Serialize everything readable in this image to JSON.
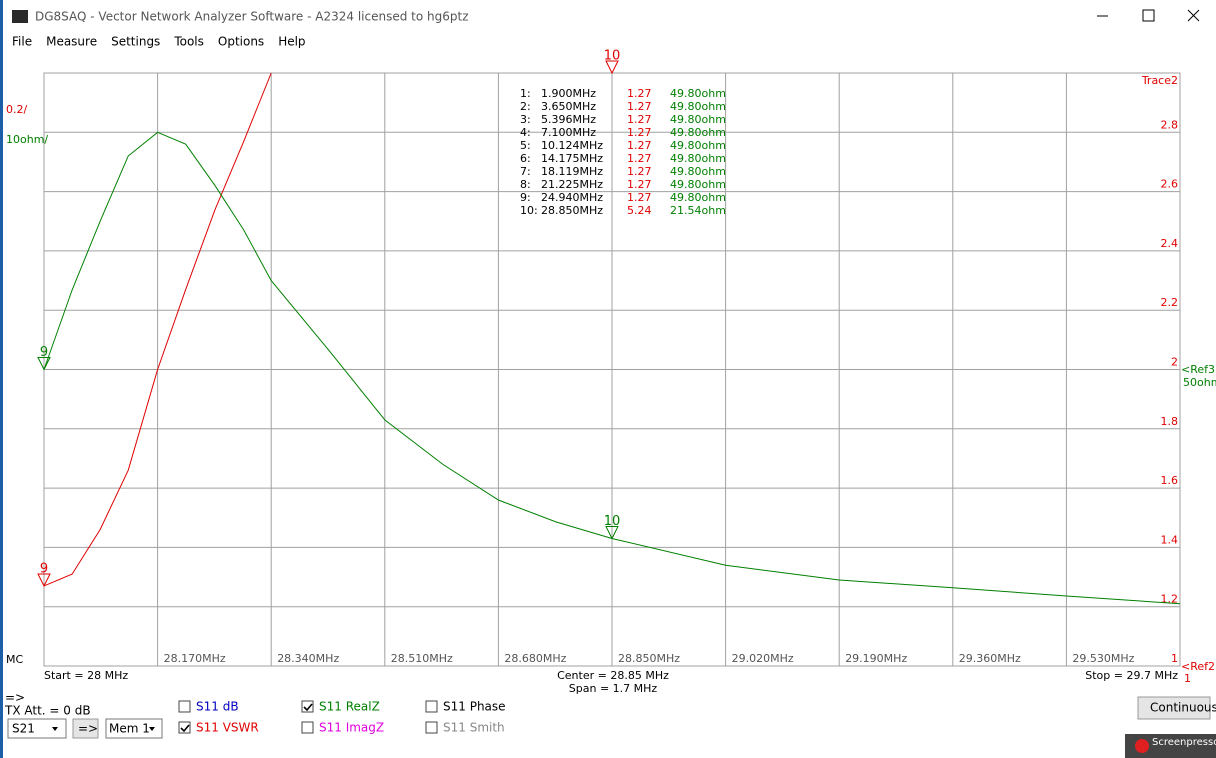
{
  "window": {
    "title": "DG8SAQ  -  Vector Network Analyzer Software  -  A2324 licensed to hg6ptz"
  },
  "menu": [
    "File",
    "Measure",
    "Settings",
    "Tools",
    "Options",
    "Help"
  ],
  "chart_data": {
    "type": "line",
    "left_labels": [
      "0.2/",
      "10ohm/"
    ],
    "trace_label": "Trace2",
    "ref3": [
      "<Ref3",
      "50ohm"
    ],
    "ref2": [
      "<Ref2",
      "1"
    ],
    "mc_label": "MC",
    "start": "Start = 28 MHz",
    "center": "Center = 28.85 MHz",
    "span": "Span = 1.7 MHz",
    "stop": "Stop = 29.7 MHz",
    "x": [
      28,
      28.042,
      28.084,
      28.126,
      28.17,
      28.212,
      28.256,
      28.299,
      28.34,
      28.428,
      28.51,
      28.597,
      28.68,
      28.766,
      28.85,
      29.02,
      29.19,
      29.36,
      29.53,
      29.7
    ],
    "xlim": [
      28,
      29.7
    ],
    "xticks": [
      {
        "value": 28.17,
        "label": "28.170MHz"
      },
      {
        "value": 28.34,
        "label": "28.340MHz"
      },
      {
        "value": 28.51,
        "label": "28.510MHz"
      },
      {
        "value": 28.68,
        "label": "28.680MHz"
      },
      {
        "value": 28.85,
        "label": "28.850MHz"
      },
      {
        "value": 29.02,
        "label": "29.020MHz"
      },
      {
        "value": 29.19,
        "label": "29.190MHz"
      },
      {
        "value": 29.36,
        "label": "29.360MHz"
      },
      {
        "value": 29.53,
        "label": "29.530MHz"
      }
    ],
    "ylim": [
      1,
      3
    ],
    "yticks": [
      1,
      1.2,
      1.4,
      1.6,
      1.8,
      2,
      2.2,
      2.4,
      2.6,
      2.8
    ],
    "y2lim": [
      0,
      100
    ],
    "grid": true,
    "series": [
      {
        "name": "S11 VSWR",
        "color": "#e00000",
        "values": [
          1.27,
          1.31,
          1.46,
          1.66,
          2.0,
          2.27,
          2.54,
          2.77,
          3.0,
          null,
          null,
          null,
          null,
          null,
          null,
          null,
          null,
          null,
          null,
          null
        ]
      },
      {
        "name": "S11 RealZ",
        "color": "#008000",
        "axis": "y2",
        "values": [
          50,
          63.4,
          75,
          86,
          90,
          88,
          81,
          73.5,
          65,
          53,
          41.5,
          34,
          28,
          24.3,
          21.5,
          17,
          14.5,
          13.2,
          11.8,
          10.5
        ]
      }
    ],
    "marker_labels": [
      "9",
      "10"
    ],
    "markers": [
      [
        "1:",
        "1.900MHz",
        "1.27",
        "49.80ohm"
      ],
      [
        "2:",
        "3.650MHz",
        "1.27",
        "49.80ohm"
      ],
      [
        "3:",
        "5.396MHz",
        "1.27",
        "49.80ohm"
      ],
      [
        "4:",
        "7.100MHz",
        "1.27",
        "49.80ohm"
      ],
      [
        "5:",
        "10.124MHz",
        "1.27",
        "49.80ohm"
      ],
      [
        "6:",
        "14.175MHz",
        "1.27",
        "49.80ohm"
      ],
      [
        "7:",
        "18.119MHz",
        "1.27",
        "49.80ohm"
      ],
      [
        "8:",
        "21.225MHz",
        "1.27",
        "49.80ohm"
      ],
      [
        "9:",
        "24.940MHz",
        "1.27",
        "49.80ohm"
      ],
      [
        "10:",
        "28.850MHz",
        "5.24",
        "21.54ohm"
      ]
    ]
  },
  "controls": {
    "arrow": "=>",
    "tx_att": "TX Att. = 0 dB",
    "port": "S21",
    "mem": "Mem 1",
    "checkboxes": [
      "S11  dB",
      "S11  VSWR",
      "S11  RealZ",
      "S11  ImagZ",
      "S11  Phase",
      "S11  Smith"
    ],
    "continuous": "Continuous",
    "watermark": "Screenpresso"
  }
}
